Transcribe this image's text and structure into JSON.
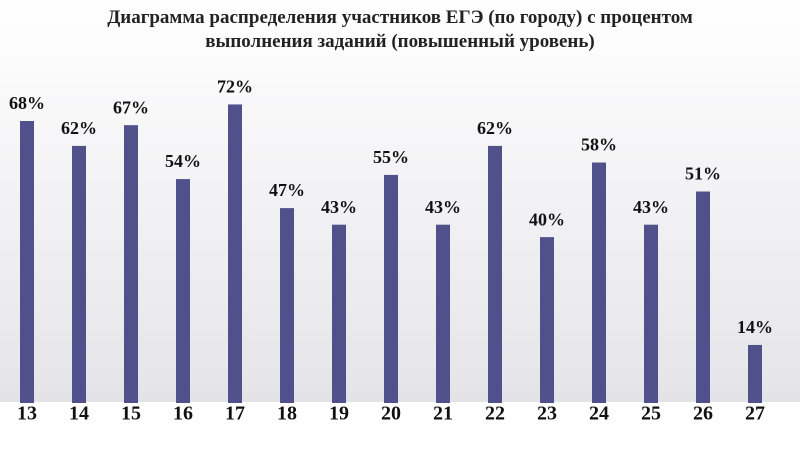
{
  "chart_data": {
    "type": "bar",
    "title": "Диаграмма распределения участников ЕГЭ (по городу) с процентом выполнения заданий (повышенный уровень)",
    "categories": [
      "13",
      "14",
      "15",
      "16",
      "17",
      "18",
      "19",
      "20",
      "21",
      "22",
      "23",
      "24",
      "25",
      "26",
      "27"
    ],
    "values": [
      68,
      62,
      67,
      54,
      72,
      47,
      43,
      55,
      43,
      62,
      40,
      58,
      43,
      51,
      14
    ],
    "value_labels": [
      "68%",
      "62%",
      "67%",
      "54%",
      "72%",
      "47%",
      "43%",
      "55%",
      "43%",
      "62%",
      "40%",
      "58%",
      "43%",
      "51%",
      "14%"
    ],
    "color": "#50508a",
    "ylim": [
      0,
      75
    ]
  }
}
